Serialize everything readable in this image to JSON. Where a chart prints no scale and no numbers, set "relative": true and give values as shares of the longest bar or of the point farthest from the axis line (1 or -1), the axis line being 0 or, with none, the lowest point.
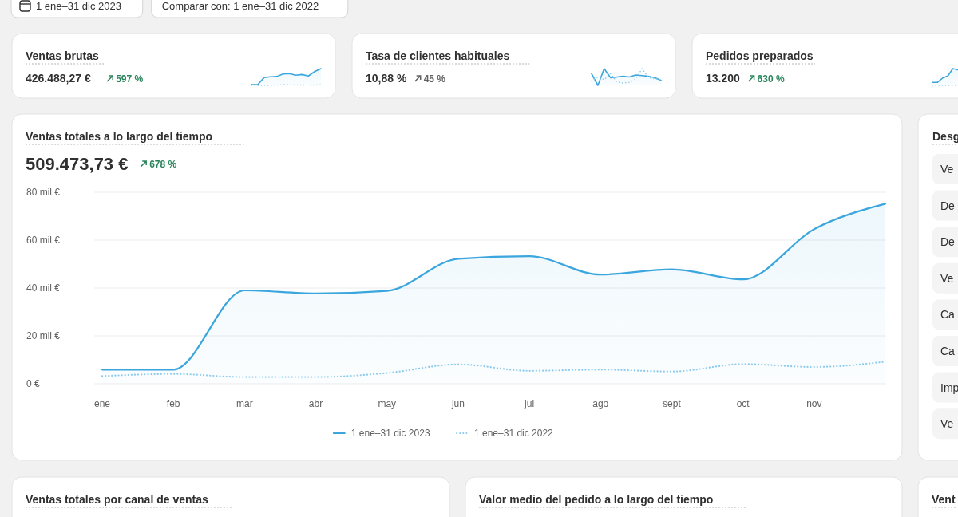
{
  "chart_data": [
    {
      "type": "other",
      "annotations": [
        "1 ene–31 dic 2023",
        "Comparar con: 1 ene–31 dic 2022"
      ]
    },
    {
      "type": "other",
      "title": "Ventas brutas",
      "annotations": [
        "426.488,27 €",
        "597 %"
      ]
    },
    {
      "type": "line",
      "relative": true,
      "categories": [
        null,
        null,
        null,
        null,
        null,
        null,
        null,
        null,
        null,
        null,
        null,
        null
      ],
      "series": [
        {
          "type": "area",
          "color": "#3aa6dd",
          "line_style": "solid",
          "values": [
            0.05,
            0.05,
            0.47,
            0.51,
            0.53,
            0.68,
            0.7,
            0.61,
            0.65,
            0.56,
            0.82,
            1
          ]
        },
        {
          "type": "line",
          "color": "#8ccbed",
          "line_style": "dotted",
          "values": [
            0,
            0,
            0,
            0,
            0.02,
            0.04,
            0.04,
            0.02,
            0.02,
            0.02,
            0.02,
            0.04
          ]
        }
      ]
    },
    {
      "type": "other",
      "title": "Tasa de clientes habituales",
      "annotations": [
        "10,88 %",
        "45 %"
      ]
    },
    {
      "type": "line",
      "relative": true,
      "categories": [
        null,
        null,
        null,
        null,
        null,
        null,
        null,
        null,
        null,
        null,
        null,
        null
      ],
      "series": [
        {
          "type": "area",
          "color": "#3aa6dd",
          "line_style": "solid",
          "values": [
            0.7,
            0,
            1,
            0.46,
            0.5,
            0.54,
            0.5,
            0.62,
            0.58,
            0.54,
            0.46,
            0.3
          ]
        },
        {
          "type": "line",
          "color": "#8ccbed",
          "line_style": "dotted",
          "values": [
            0.26,
            0.5,
            0.34,
            0.7,
            0.2,
            0.14,
            0.18,
            0.38,
            1,
            0.46,
            0.4,
            0.34
          ]
        }
      ]
    },
    {
      "type": "other",
      "title": "Pedidos preparados",
      "annotations": [
        "13.200",
        "630 %"
      ]
    },
    {
      "type": "line",
      "relative": true,
      "categories": [
        null,
        null,
        null,
        null,
        null,
        null
      ],
      "series": [
        {
          "type": "area",
          "color": "#3aa6dd",
          "line_style": "solid",
          "values": [
            0.18,
            0.18,
            0.44,
            0.56,
            1,
            0.93
          ]
        },
        {
          "type": "line",
          "color": "#8ccbed",
          "line_style": "dotted",
          "values": [
            0,
            0,
            0,
            0,
            0,
            0
          ]
        }
      ]
    },
    {
      "type": "line",
      "title": "Ventas totales a lo largo del tiempo",
      "annotations": [
        "509.473,73 €",
        "678 %"
      ],
      "categories": [
        "ene",
        "feb",
        "mar",
        "abr",
        "may",
        "jun",
        "jul",
        "ago",
        "sept",
        "oct",
        "nov",
        null
      ],
      "ylim": [
        0,
        80
      ],
      "yticks": [
        {
          "value": 0,
          "label": "0 €"
        },
        {
          "value": 20,
          "label": "20 mil €"
        },
        {
          "value": 40,
          "label": "40 mil €"
        },
        {
          "value": 60,
          "label": "60 mil €"
        },
        {
          "value": 80,
          "label": "80 mil €"
        }
      ],
      "grid": "y",
      "legend": "bottom",
      "series": [
        {
          "name": "1 ene–31 dic 2023",
          "type": "area",
          "color": "#3aa6dd",
          "line_style": "solid",
          "values": [
            5.9,
            5.9,
            39,
            37.7,
            38.8,
            52.2,
            53.3,
            45.6,
            47.8,
            43.6,
            64.6,
            75.2
          ]
        },
        {
          "name": "1 ene–31 dic 2022",
          "type": "line",
          "color": "#8ccbed",
          "line_style": "dotted",
          "values": [
            3.2,
            4.1,
            2.8,
            2.8,
            4.5,
            8.1,
            5.4,
            5.9,
            5.1,
            8.2,
            7,
            9.2
          ]
        }
      ]
    },
    {
      "type": "other",
      "title": "Desg",
      "annotations": [
        "Ve",
        "De",
        "De",
        "Ve",
        "Ca",
        "Ca",
        "Imp",
        "Ve"
      ]
    },
    {
      "type": "other",
      "title": "Ventas totales por canal de ventas"
    },
    {
      "type": "other",
      "title": "Valor medio del pedido a lo largo del tiempo"
    },
    {
      "type": "other",
      "title": "Vent"
    }
  ]
}
